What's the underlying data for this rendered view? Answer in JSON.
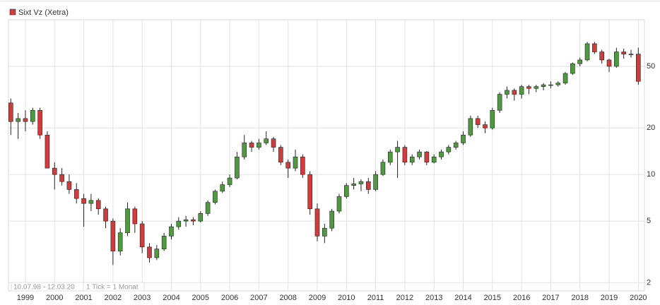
{
  "chart_data": {
    "type": "candlestick",
    "legend": "Sixt Vz (Xetra)",
    "log_scale": true,
    "grid": true,
    "up_color": "#4f9a3f",
    "down_color": "#d23b3b",
    "legend_color": "#d23b3b",
    "date_range": "10.07.98 - 12.03.20",
    "tick_note": "1 Tick = 1 Monat",
    "xlim": [
      1998.42,
      2020.21
    ],
    "xticks": [
      1999,
      2000,
      2001,
      2002,
      2003,
      2004,
      2005,
      2006,
      2007,
      2008,
      2009,
      2010,
      2011,
      2012,
      2013,
      2014,
      2015,
      2016,
      2017,
      2018,
      2019,
      2020
    ],
    "ylim": [
      1.77,
      100
    ],
    "yticks": [
      2,
      5,
      10,
      20,
      50
    ],
    "x": [
      1998.5,
      1998.75,
      1999,
      1999.25,
      1999.5,
      1999.75,
      2000,
      2000.25,
      2000.5,
      2000.75,
      2001,
      2001.25,
      2001.5,
      2001.75,
      2002,
      2002.25,
      2002.5,
      2002.75,
      2003,
      2003.25,
      2003.5,
      2003.75,
      2004,
      2004.25,
      2004.5,
      2004.75,
      2005,
      2005.25,
      2005.5,
      2005.75,
      2006,
      2006.25,
      2006.5,
      2006.75,
      2007,
      2007.25,
      2007.5,
      2007.75,
      2008,
      2008.25,
      2008.5,
      2008.75,
      2009,
      2009.25,
      2009.5,
      2009.75,
      2010,
      2010.25,
      2010.5,
      2010.75,
      2011,
      2011.25,
      2011.5,
      2011.75,
      2012,
      2012.25,
      2012.5,
      2012.75,
      2013,
      2013.25,
      2013.5,
      2013.75,
      2014,
      2014.25,
      2014.5,
      2014.75,
      2015,
      2015.25,
      2015.5,
      2015.75,
      2016,
      2016.25,
      2016.5,
      2016.75,
      2017,
      2017.25,
      2017.5,
      2017.75,
      2018,
      2018.25,
      2018.5,
      2018.75,
      2019,
      2019.25,
      2019.5,
      2019.75,
      2020
    ],
    "open": [
      29,
      22,
      23,
      22,
      26,
      18,
      11,
      10,
      9,
      8,
      7,
      6.5,
      6.8,
      6,
      5,
      3.2,
      4.2,
      6,
      4.8,
      3.4,
      2.9,
      3.3,
      4,
      4.6,
      5,
      5.1,
      5,
      5.6,
      6.6,
      7.8,
      8.6,
      9.5,
      13,
      16,
      15,
      16,
      17,
      15,
      12,
      11,
      13,
      10,
      6,
      4,
      4.5,
      5.8,
      7.2,
      8.5,
      8.7,
      9,
      8,
      10,
      12,
      14,
      15,
      12,
      13,
      14,
      12,
      13,
      14,
      15,
      16,
      18,
      23,
      21,
      20,
      26,
      33,
      35,
      33,
      37,
      36,
      37,
      38,
      38,
      39,
      45,
      52,
      55,
      70,
      62,
      55,
      50,
      62,
      60,
      60
    ],
    "high": [
      31,
      25,
      26,
      27,
      27,
      19,
      12,
      11,
      10,
      8.8,
      7.5,
      7.5,
      7,
      6.2,
      5.2,
      4.5,
      6.6,
      6.2,
      5,
      3.6,
      3.5,
      4.2,
      4.8,
      5.3,
      5.4,
      5.3,
      5.8,
      6.8,
      8,
      9,
      10,
      14,
      18,
      16.5,
      17,
      19,
      17.5,
      15.5,
      12.5,
      14.5,
      13.5,
      10.5,
      6.5,
      4.8,
      6,
      7.5,
      8.8,
      9.5,
      9.3,
      9.5,
      10.5,
      12.5,
      14.5,
      16.5,
      15.5,
      13.5,
      14.5,
      14.2,
      13.5,
      14.5,
      15.5,
      16.5,
      19,
      24,
      24,
      22,
      27,
      34,
      37,
      36,
      38,
      38,
      38,
      39,
      40,
      40,
      46,
      53,
      57,
      72,
      72,
      64,
      56,
      66,
      65,
      64,
      66
    ],
    "low": [
      18,
      17,
      19,
      21,
      17,
      11,
      8,
      8.5,
      7.5,
      6.5,
      4.6,
      5.8,
      5.5,
      4.5,
      2.6,
      3,
      4,
      4.2,
      3.1,
      2.7,
      2.8,
      3.2,
      3.8,
      4.4,
      4.6,
      4.7,
      4.9,
      5.4,
      6.4,
      7.6,
      8.3,
      9.3,
      12.5,
      14,
      14.5,
      15.5,
      14,
      11.5,
      9.5,
      10.5,
      9.5,
      5.5,
      3.7,
      3.6,
      4.3,
      5.6,
      7,
      8,
      7.8,
      7.5,
      7.8,
      9.8,
      11.5,
      9.5,
      11.5,
      11.5,
      12.5,
      11.5,
      11.8,
      12.5,
      13.5,
      14.5,
      15.5,
      17.5,
      20,
      18.5,
      19.5,
      25,
      31,
      30,
      31,
      33,
      34,
      35,
      36,
      37,
      38,
      44,
      50,
      54,
      60,
      52,
      46,
      49,
      56,
      57,
      38
    ],
    "close": [
      22,
      23,
      22,
      26,
      18,
      11,
      10,
      9,
      8,
      7,
      6.5,
      6.8,
      6,
      5,
      3.2,
      4.2,
      6,
      4.8,
      3.4,
      2.9,
      3.3,
      4,
      4.6,
      5,
      5.1,
      5,
      5.6,
      6.6,
      7.8,
      8.6,
      9.5,
      13,
      16,
      15,
      16,
      17,
      15,
      12,
      11,
      13,
      10,
      6,
      4,
      4.5,
      5.8,
      7.2,
      8.5,
      8.7,
      9,
      8,
      10,
      12,
      14,
      15,
      12,
      13,
      14,
      12,
      13,
      14,
      15,
      16,
      18,
      23,
      21,
      20,
      26,
      33,
      35,
      33,
      37,
      36,
      37,
      38,
      38,
      39,
      45,
      52,
      55,
      70,
      62,
      55,
      50,
      62,
      60,
      60,
      40
    ]
  }
}
